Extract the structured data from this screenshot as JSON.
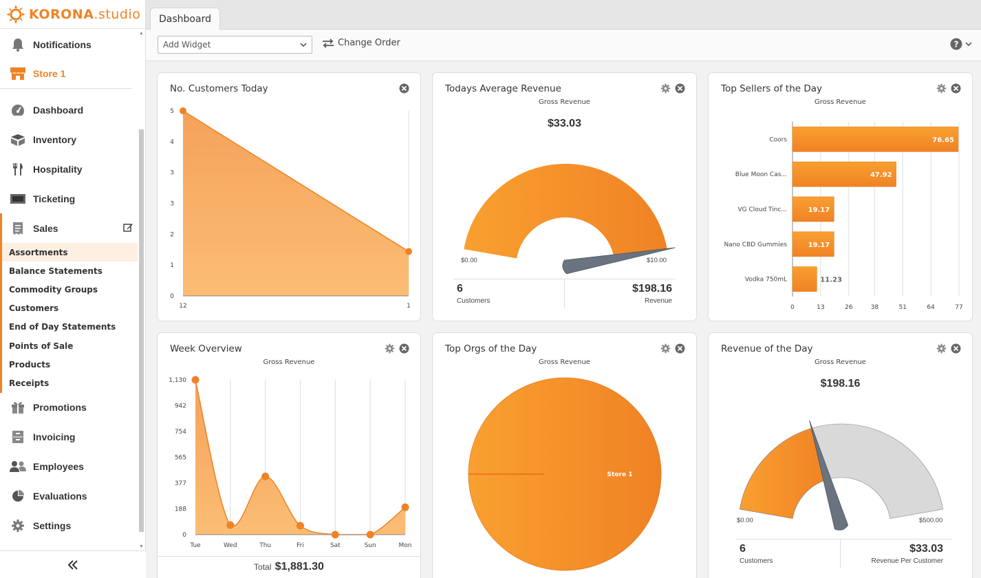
{
  "app": {
    "logo_bold": "KORONA",
    "logo_light": ".studio"
  },
  "sidebar": {
    "notifications": "Notifications",
    "store": "Store 1",
    "items": [
      {
        "label": "Dashboard",
        "icon": "dashboard-icon"
      },
      {
        "label": "Inventory",
        "icon": "inventory-icon"
      },
      {
        "label": "Hospitality",
        "icon": "fork-knife-icon"
      },
      {
        "label": "Ticketing",
        "icon": "ticket-icon"
      },
      {
        "label": "Sales",
        "icon": "receipt-icon"
      }
    ],
    "sales_sub": [
      "Assortments",
      "Balance Statements",
      "Commodity Groups",
      "Customers",
      "End of Day Statements",
      "Points of Sale",
      "Products",
      "Receipts"
    ],
    "items_after": [
      {
        "label": "Promotions",
        "icon": "gift-icon"
      },
      {
        "label": "Invoicing",
        "icon": "cabinet-icon"
      },
      {
        "label": "Employees",
        "icon": "users-icon"
      },
      {
        "label": "Evaluations",
        "icon": "pie-chart-icon"
      },
      {
        "label": "Settings",
        "icon": "gear-icon"
      }
    ]
  },
  "tabs": [
    "Dashboard"
  ],
  "toolbar": {
    "add_widget_placeholder": "Add Widget",
    "change_order": "Change Order"
  },
  "colors": {
    "accent": "#f08224",
    "accent_light": "#f9a950",
    "gray_bar": "#d9d9d9"
  },
  "widgets": {
    "customers_today": {
      "title": "No. Customers Today",
      "chart_data": {
        "type": "area",
        "x": [
          "12",
          "1"
        ],
        "values": [
          5,
          1.2
        ],
        "yticks": [
          "0",
          "1",
          "2",
          "3",
          "3",
          "4",
          "5"
        ],
        "ylim": [
          0,
          5
        ]
      }
    },
    "avg_revenue": {
      "title": "Todays Average Revenue",
      "subtitle": "Gross Revenue",
      "value": "$33.03",
      "min": "$0.00",
      "max": "$10.00",
      "gauge_fraction": 1.0,
      "customers_count": "6",
      "customers_label": "Customers",
      "revenue_value": "$198.16",
      "revenue_label": "Revenue"
    },
    "top_sellers": {
      "title": "Top Sellers of the Day",
      "subtitle": "Gross Revenue",
      "chart_data": {
        "type": "bar",
        "categories": [
          "Coors",
          "Blue Moon Cas...",
          "VG Cloud Tinc...",
          "Nano CBD Gummies",
          "Vodka 750mL"
        ],
        "values": [
          76.65,
          47.92,
          19.17,
          19.17,
          11.23
        ],
        "labels": [
          "76.65",
          "47.92",
          "19.17",
          "19.17",
          "11.23"
        ],
        "xticks": [
          "0",
          "13",
          "26",
          "38",
          "51",
          "64",
          "77"
        ],
        "xlim": [
          0,
          77
        ]
      }
    },
    "week_overview": {
      "title": "Week Overview",
      "subtitle": "Gross Revenue",
      "total_label": "Total",
      "total_value": "$1,881.30",
      "chart_data": {
        "type": "area",
        "categories": [
          "Tue",
          "Wed",
          "Thu",
          "Fri",
          "Sat",
          "Sun",
          "Mon"
        ],
        "values": [
          1130,
          70,
          425,
          65,
          0,
          0,
          200
        ],
        "yticks": [
          "0",
          "188",
          "377",
          "565",
          "754",
          "942",
          "1,130"
        ],
        "ylim": [
          0,
          1130
        ]
      }
    },
    "top_orgs": {
      "title": "Top Orgs of the Day",
      "subtitle": "Gross Revenue",
      "chart_data": {
        "type": "pie",
        "categories": [
          "Store 1"
        ],
        "values": [
          100
        ]
      }
    },
    "revenue_day": {
      "title": "Revenue of the Day",
      "subtitle": "Gross Revenue",
      "value": "$198.16",
      "min": "$0.00",
      "max": "$500.00",
      "gauge_fraction": 0.396,
      "customers_count": "6",
      "customers_label": "Customers",
      "per_customer_value": "$33.03",
      "per_customer_label": "Revenue Per Customer"
    }
  }
}
